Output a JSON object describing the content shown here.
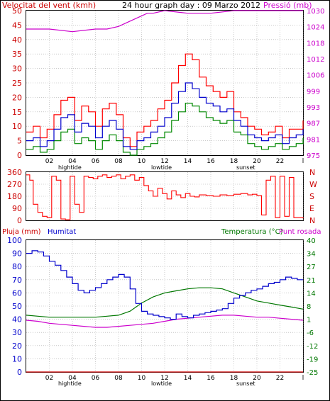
{
  "page_title": "24 hour graph day : 09 Marzo 2012",
  "colors": {
    "wind": "#ff0000",
    "gust": "#ff0000",
    "pressure": "#cc00cc",
    "humidity": "#0000cc",
    "temperature": "#007700",
    "dewpoint": "#cc00cc",
    "rain": "#cc0000",
    "wind_avg_line": "#0000cc",
    "wind_low_line": "#008800",
    "grid": "#aaaaaa",
    "frame": "#000000"
  },
  "x_labels": [
    "02",
    "04",
    "06",
    "08",
    "10",
    "12",
    "14",
    "16",
    "18",
    "20",
    "22",
    "l"
  ],
  "tide_labels": {
    "high": "hightide",
    "low": "lowtide",
    "sunset": "sunset"
  },
  "chart_data": [
    {
      "type": "line",
      "left_label": "Velocitat del vent (kmh)",
      "right_label": "Pressió (mb)",
      "y_left_ticks": [
        "0",
        "5",
        "10",
        "15",
        "20",
        "25",
        "30",
        "35",
        "40",
        "45",
        "50"
      ],
      "y_right_ticks": [
        "975",
        "981",
        "987",
        "993",
        "999",
        "1006",
        "1012",
        "1018",
        "1024",
        "1030"
      ],
      "y_left_range": [
        0,
        50
      ],
      "y_right_range": [
        975,
        1030
      ],
      "series": [
        {
          "key": "gust",
          "x": [
            0,
            0.6,
            1.2,
            1.8,
            2.4,
            3,
            3.6,
            4.2,
            4.8,
            5.4,
            6,
            6.6,
            7.2,
            7.8,
            8.4,
            9,
            9.6,
            10.2,
            10.8,
            11.4,
            12,
            12.6,
            13.2,
            13.8,
            14.4,
            15,
            15.6,
            16.2,
            16.8,
            17.4,
            18,
            18.6,
            19.2,
            19.8,
            20.4,
            21,
            21.6,
            22.2,
            22.8,
            23.4,
            24
          ],
          "y": [
            8,
            10,
            6,
            9,
            14,
            19,
            20,
            12,
            17,
            15,
            10,
            16,
            18,
            14,
            6,
            3,
            8,
            10,
            12,
            16,
            19,
            25,
            31,
            35,
            33,
            27,
            24,
            22,
            20,
            22,
            15,
            13,
            10,
            9,
            7,
            8,
            10,
            6,
            9,
            9,
            12
          ]
        },
        {
          "key": "avg",
          "x": [
            0,
            0.6,
            1.2,
            1.8,
            2.4,
            3,
            3.6,
            4.2,
            4.8,
            5.4,
            6,
            6.6,
            7.2,
            7.8,
            8.4,
            9,
            9.6,
            10.2,
            10.8,
            11.4,
            12,
            12.6,
            13.2,
            13.8,
            14.4,
            15,
            15.6,
            16.2,
            16.8,
            17.4,
            18,
            18.6,
            19.2,
            19.8,
            20.4,
            21,
            21.6,
            22.2,
            22.8,
            23.4,
            24
          ],
          "y": [
            5,
            6,
            3,
            5,
            9,
            13,
            14,
            8,
            11,
            10,
            6,
            10,
            12,
            9,
            3,
            2,
            5,
            6,
            8,
            10,
            13,
            18,
            22,
            25,
            23,
            20,
            18,
            17,
            15,
            16,
            12,
            10,
            7,
            6,
            5,
            6,
            7,
            4,
            6,
            7,
            9
          ]
        },
        {
          "key": "low",
          "x": [
            0,
            0.6,
            1.2,
            1.8,
            2.4,
            3,
            3.6,
            4.2,
            4.8,
            5.4,
            6,
            6.6,
            7.2,
            7.8,
            8.4,
            9,
            9.6,
            10.2,
            10.8,
            11.4,
            12,
            12.6,
            13.2,
            13.8,
            14.4,
            15,
            15.6,
            16.2,
            16.8,
            17.4,
            18,
            18.6,
            19.2,
            19.8,
            20.4,
            21,
            21.6,
            22.2,
            22.8,
            23.4,
            24
          ],
          "y": [
            2,
            3,
            1,
            2,
            5,
            8,
            9,
            4,
            6,
            5,
            2,
            5,
            7,
            5,
            1,
            0,
            2,
            3,
            4,
            6,
            8,
            12,
            15,
            18,
            17,
            15,
            13,
            12,
            11,
            12,
            8,
            7,
            4,
            3,
            2,
            3,
            4,
            2,
            3,
            4,
            6
          ]
        },
        {
          "key": "pressure",
          "x": [
            0,
            2,
            4,
            6,
            7,
            8,
            9,
            10,
            10.5,
            11,
            12,
            14,
            16,
            18,
            20,
            22,
            24
          ],
          "y": [
            1023,
            1023,
            1022,
            1023,
            1023,
            1024,
            1026,
            1028,
            1029,
            1029,
            1030,
            1029,
            1029,
            1030,
            1030,
            1030,
            1030
          ]
        }
      ]
    },
    {
      "type": "line",
      "right_label_letters": [
        "N",
        "W",
        "S",
        "E",
        "N"
      ],
      "y_left_ticks": [
        "0",
        "90",
        "180",
        "270",
        "360"
      ],
      "y_range": [
        0,
        360
      ],
      "series": [
        {
          "key": "direction",
          "x": [
            0,
            0.3,
            0.6,
            1,
            1.4,
            1.8,
            2.2,
            2.6,
            3,
            3.4,
            3.8,
            4.2,
            4.6,
            5,
            5.4,
            5.8,
            6.2,
            6.6,
            7,
            7.4,
            7.8,
            8.2,
            8.6,
            9,
            9.4,
            9.8,
            10.2,
            10.6,
            11,
            11.4,
            11.8,
            12.2,
            12.6,
            13,
            13.4,
            13.8,
            14.2,
            14.6,
            15,
            15.6,
            16.2,
            16.8,
            17.4,
            18,
            18.6,
            19.2,
            19.6,
            20,
            20.4,
            20.8,
            21.2,
            21.6,
            22,
            22.4,
            22.8,
            23.2,
            23.6,
            24
          ],
          "y": [
            340,
            300,
            120,
            60,
            30,
            20,
            330,
            300,
            10,
            5,
            330,
            120,
            60,
            330,
            320,
            310,
            330,
            340,
            320,
            330,
            340,
            310,
            330,
            340,
            300,
            320,
            260,
            220,
            180,
            240,
            200,
            160,
            220,
            190,
            170,
            200,
            180,
            175,
            190,
            185,
            180,
            190,
            185,
            195,
            200,
            190,
            195,
            185,
            40,
            300,
            330,
            20,
            330,
            30,
            320,
            20,
            20,
            15
          ]
        }
      ]
    },
    {
      "type": "line",
      "left_label": "Pluja (mm)",
      "left_label_2": "Humitat",
      "right_label": "Temperatura (°C)",
      "right_label_2": "Punt rosada",
      "y_left_ticks": [
        "0",
        "10",
        "20",
        "30",
        "40",
        "50",
        "60",
        "70",
        "80",
        "90",
        "100"
      ],
      "y_right_ticks": [
        "-25",
        "-19",
        "-12",
        "-6",
        "1",
        "8",
        "14",
        "21",
        "27",
        "34",
        "40"
      ],
      "y_left_range": [
        0,
        100
      ],
      "y_right_range": [
        -25,
        40
      ],
      "series": [
        {
          "key": "humidity",
          "x": [
            0,
            0.5,
            1,
            1.5,
            2,
            2.5,
            3,
            3.5,
            4,
            4.5,
            5,
            5.5,
            6,
            6.5,
            7,
            7.5,
            8,
            8.5,
            9,
            9.5,
            10,
            10.5,
            11,
            11.5,
            12,
            12.5,
            13,
            13.5,
            14,
            14.5,
            15,
            15.5,
            16,
            16.5,
            17,
            17.5,
            18,
            18.5,
            19,
            19.5,
            20,
            20.5,
            21,
            21.5,
            22,
            22.5,
            23,
            23.5,
            24
          ],
          "y": [
            90,
            92,
            91,
            88,
            84,
            81,
            77,
            72,
            67,
            62,
            60,
            62,
            64,
            67,
            70,
            72,
            74,
            72,
            63,
            52,
            46,
            44,
            43,
            42,
            41,
            40,
            44,
            42,
            41,
            43,
            44,
            45,
            46,
            47,
            48,
            52,
            56,
            58,
            60,
            62,
            63,
            65,
            67,
            68,
            70,
            72,
            71,
            70,
            70
          ]
        },
        {
          "key": "temperature",
          "x": [
            0,
            1,
            2,
            3,
            4,
            5,
            6,
            7,
            8,
            9,
            10,
            11,
            12,
            13,
            14,
            15,
            16,
            17,
            18,
            19,
            20,
            21,
            22,
            23,
            24
          ],
          "y": [
            3,
            2.5,
            2,
            2,
            2,
            2,
            2,
            2.5,
            3,
            5,
            9,
            12,
            14,
            15,
            16,
            16.5,
            16.5,
            16,
            14,
            12,
            10,
            9,
            8,
            7,
            6
          ]
        },
        {
          "key": "dewpoint",
          "x": [
            0,
            1,
            2,
            3,
            4,
            5,
            6,
            7,
            8,
            9,
            10,
            11,
            12,
            13,
            14,
            15,
            16,
            17,
            18,
            19,
            20,
            21,
            22,
            23,
            24
          ],
          "y": [
            0.5,
            0,
            -1,
            -1.5,
            -2,
            -2.5,
            -3,
            -3,
            -2.5,
            -2,
            -1.5,
            -1,
            0,
            1,
            1.5,
            2,
            2.5,
            3,
            3,
            2.5,
            2,
            2,
            1.5,
            1,
            0.5
          ]
        },
        {
          "key": "rain",
          "x": [
            0,
            24
          ],
          "y": [
            0,
            0
          ]
        }
      ]
    }
  ]
}
